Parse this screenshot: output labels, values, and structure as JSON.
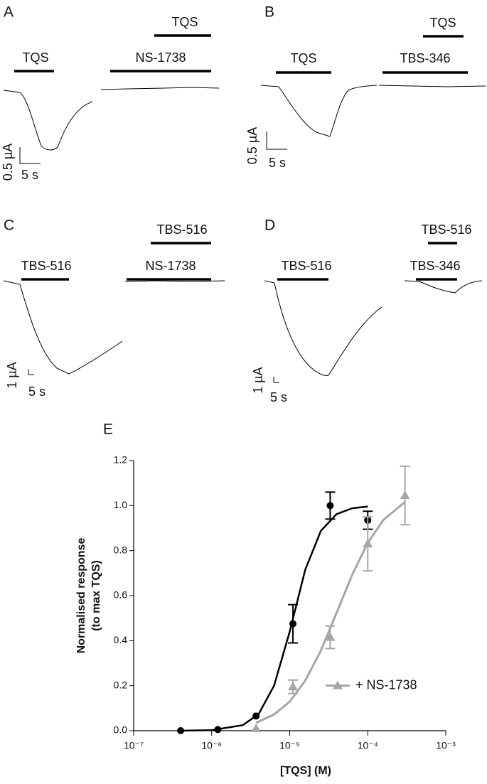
{
  "panels": [
    {
      "label": "A",
      "protocols": [
        "TQS",
        "TQS",
        "NS-1738"
      ],
      "scale": [
        "0.5 µA",
        "5 s"
      ]
    },
    {
      "label": "B",
      "protocols": [
        "TQS",
        "TQS",
        "TBS-346"
      ],
      "scale": [
        "0.5 µA",
        "5 s"
      ]
    },
    {
      "label": "C",
      "protocols": [
        "TBS-516",
        "TBS-516",
        "NS-1738"
      ],
      "scale": [
        "1 µA",
        "5 s"
      ]
    },
    {
      "label": "D",
      "protocols": [
        "TBS-516",
        "TBS-516",
        "TBS-346"
      ],
      "scale": [
        "1 µA",
        "5 s"
      ]
    }
  ],
  "chart_data": {
    "type": "scatter",
    "panel_label": "E",
    "xlabel": "[TQS] (M)",
    "ylabel": [
      "Normalised response",
      "(to max TQS)"
    ],
    "xscale": "log",
    "xlim": [
      1e-07,
      0.001
    ],
    "xticks": [
      {
        "value": 1e-07,
        "label": "10⁻⁷"
      },
      {
        "value": 1e-06,
        "label": "10⁻⁶"
      },
      {
        "value": 1e-05,
        "label": "10⁻⁵"
      },
      {
        "value": 0.0001,
        "label": "10⁻⁴"
      },
      {
        "value": 0.001,
        "label": "10⁻³"
      }
    ],
    "ylim": [
      0,
      1.2
    ],
    "yticks": [
      {
        "value": 0,
        "label": "0.0"
      },
      0.2,
      0.4,
      0.6,
      0.8,
      {
        "value": 1,
        "label": "1.0"
      },
      1.2
    ],
    "legend": "lower right",
    "series": [
      {
        "color": "#000000",
        "marker": "circle",
        "x": [
          4e-07,
          1.2e-06,
          3.7e-06,
          1.1e-05,
          3.3e-05,
          0.0001
        ],
        "values": [
          0.0,
          0.005,
          0.065,
          0.475,
          1.0,
          0.935
        ],
        "errors": [
          null,
          null,
          null,
          0.085,
          0.06,
          0.04
        ],
        "fit": {
          "x": [
            4e-07,
            1e-06,
            2.5e-06,
            4e-06,
            6.3e-06,
            1e-05,
            1.58e-05,
            2.51e-05,
            3.98e-05,
            6.31e-05,
            0.0001
          ],
          "values": [
            0.0,
            0.0025,
            0.0245,
            0.074,
            0.2,
            0.44,
            0.715,
            0.888,
            0.962,
            0.988,
            0.996
          ]
        }
      },
      {
        "name": "+ NS-1738",
        "color": "#a6a6a6",
        "marker": "triangle",
        "x": [
          3.7e-06,
          1.1e-05,
          3.3e-05,
          0.0001,
          0.0003
        ],
        "values": [
          0.01,
          0.195,
          0.415,
          0.83,
          1.045
        ],
        "errors": [
          null,
          0.03,
          0.05,
          0.12,
          0.13
        ],
        "fit": {
          "x": [
            3.7e-06,
            6.3e-06,
            1e-05,
            1.58e-05,
            2.51e-05,
            3.98e-05,
            6.31e-05,
            0.0001,
            0.000158,
            0.0003
          ],
          "values": [
            0.035,
            0.072,
            0.129,
            0.222,
            0.356,
            0.523,
            0.692,
            0.834,
            0.936,
            1.016
          ]
        }
      }
    ]
  }
}
